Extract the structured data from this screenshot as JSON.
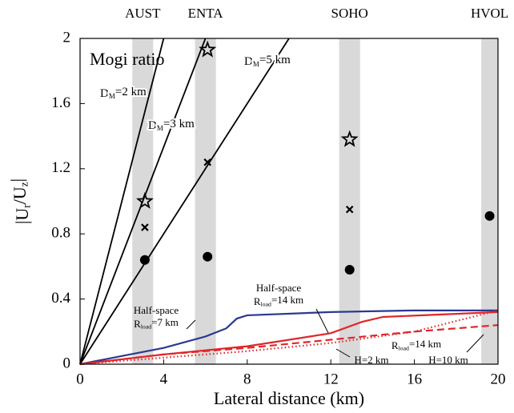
{
  "chart_data": {
    "type": "line",
    "xlabel": "Lateral distance (km)",
    "ylabel": [
      {
        "text": "|U"
      },
      {
        "text": "r",
        "sub": true
      },
      {
        "text": "/U"
      },
      {
        "text": "z",
        "sub": true
      },
      {
        "text": "|"
      }
    ],
    "xlim": [
      0,
      20
    ],
    "ylim": [
      0,
      2
    ],
    "xticks": [
      0,
      4,
      8,
      12,
      16,
      20
    ],
    "yticks": [
      0,
      0.4,
      0.8,
      1.2,
      1.6,
      2
    ],
    "stations": [
      {
        "name": "AUST",
        "x_range": [
          2.5,
          3.5
        ]
      },
      {
        "name": "ENTA",
        "x_range": [
          5.5,
          6.5
        ]
      },
      {
        "name": "SOHO",
        "x_range": [
          12.4,
          13.4
        ]
      },
      {
        "name": "HVOL",
        "x_range": [
          19.2,
          20
        ]
      }
    ],
    "band_color": "#d9d9d9",
    "series": [
      {
        "color": "#000000",
        "dash": "solid",
        "x": [
          0,
          4
        ],
        "values": [
          0,
          2
        ]
      },
      {
        "color": "#000000",
        "dash": "solid",
        "x": [
          0,
          6
        ],
        "values": [
          0,
          2
        ]
      },
      {
        "color": "#000000",
        "dash": "solid",
        "x": [
          0,
          10
        ],
        "values": [
          0,
          2
        ]
      },
      {
        "color": "#2b3990",
        "dash": "solid",
        "x": [
          0,
          2,
          4,
          6,
          7,
          7.5,
          8,
          12,
          16,
          20
        ],
        "values": [
          0,
          0.05,
          0.1,
          0.17,
          0.22,
          0.28,
          0.3,
          0.32,
          0.33,
          0.33
        ]
      },
      {
        "color": "#e0262a",
        "dash": "solid",
        "x": [
          0,
          4,
          8,
          12,
          13.5,
          14.5,
          20
        ],
        "values": [
          0,
          0.06,
          0.11,
          0.19,
          0.26,
          0.29,
          0.32
        ]
      },
      {
        "color": "#e0262a",
        "dash": "dashed",
        "x": [
          0,
          4,
          8,
          12,
          16,
          20
        ],
        "values": [
          0,
          0.06,
          0.1,
          0.15,
          0.2,
          0.24
        ]
      },
      {
        "color": "#e0262a",
        "dash": "dotted",
        "x": [
          0,
          4,
          8,
          12,
          16,
          20
        ],
        "values": [
          0,
          0.04,
          0.08,
          0.13,
          0.2,
          0.33
        ]
      }
    ],
    "markers": [
      {
        "symbol": "circle",
        "x": [
          3.1,
          6.1,
          12.9,
          19.6
        ],
        "values": [
          0.64,
          0.66,
          0.58,
          0.91
        ]
      },
      {
        "symbol": "cross",
        "x": [
          3.1,
          6.1,
          12.9
        ],
        "values": [
          0.84,
          1.24,
          0.95
        ]
      },
      {
        "symbol": "star",
        "x": [
          3.1,
          6.1,
          12.9
        ],
        "values": [
          1.0,
          1.93,
          1.38
        ]
      }
    ],
    "annotations": [
      [
        {
          "text": "Mogi ratio"
        }
      ],
      [
        {
          "text": "D"
        },
        {
          "text": "M",
          "sub": true
        },
        {
          "text": "=2 km"
        }
      ],
      [
        {
          "text": "D"
        },
        {
          "text": "M",
          "sub": true
        },
        {
          "text": "=3 km"
        }
      ],
      [
        {
          "text": "D"
        },
        {
          "text": "M",
          "sub": true
        },
        {
          "text": "=5 km"
        }
      ],
      [
        {
          "text": "Half-space"
        }
      ],
      [
        {
          "text": "R"
        },
        {
          "text": "load",
          "sub": true
        },
        {
          "text": "=7 km"
        }
      ],
      [
        {
          "text": "Half-space"
        }
      ],
      [
        {
          "text": "R"
        },
        {
          "text": "load",
          "sub": true
        },
        {
          "text": "=14 km"
        }
      ],
      [
        {
          "text": "R"
        },
        {
          "text": "load",
          "sub": true
        },
        {
          "text": "=14 km"
        }
      ],
      [
        {
          "text": "H=2 km"
        }
      ],
      [
        {
          "text": "H=10 km"
        }
      ]
    ]
  }
}
